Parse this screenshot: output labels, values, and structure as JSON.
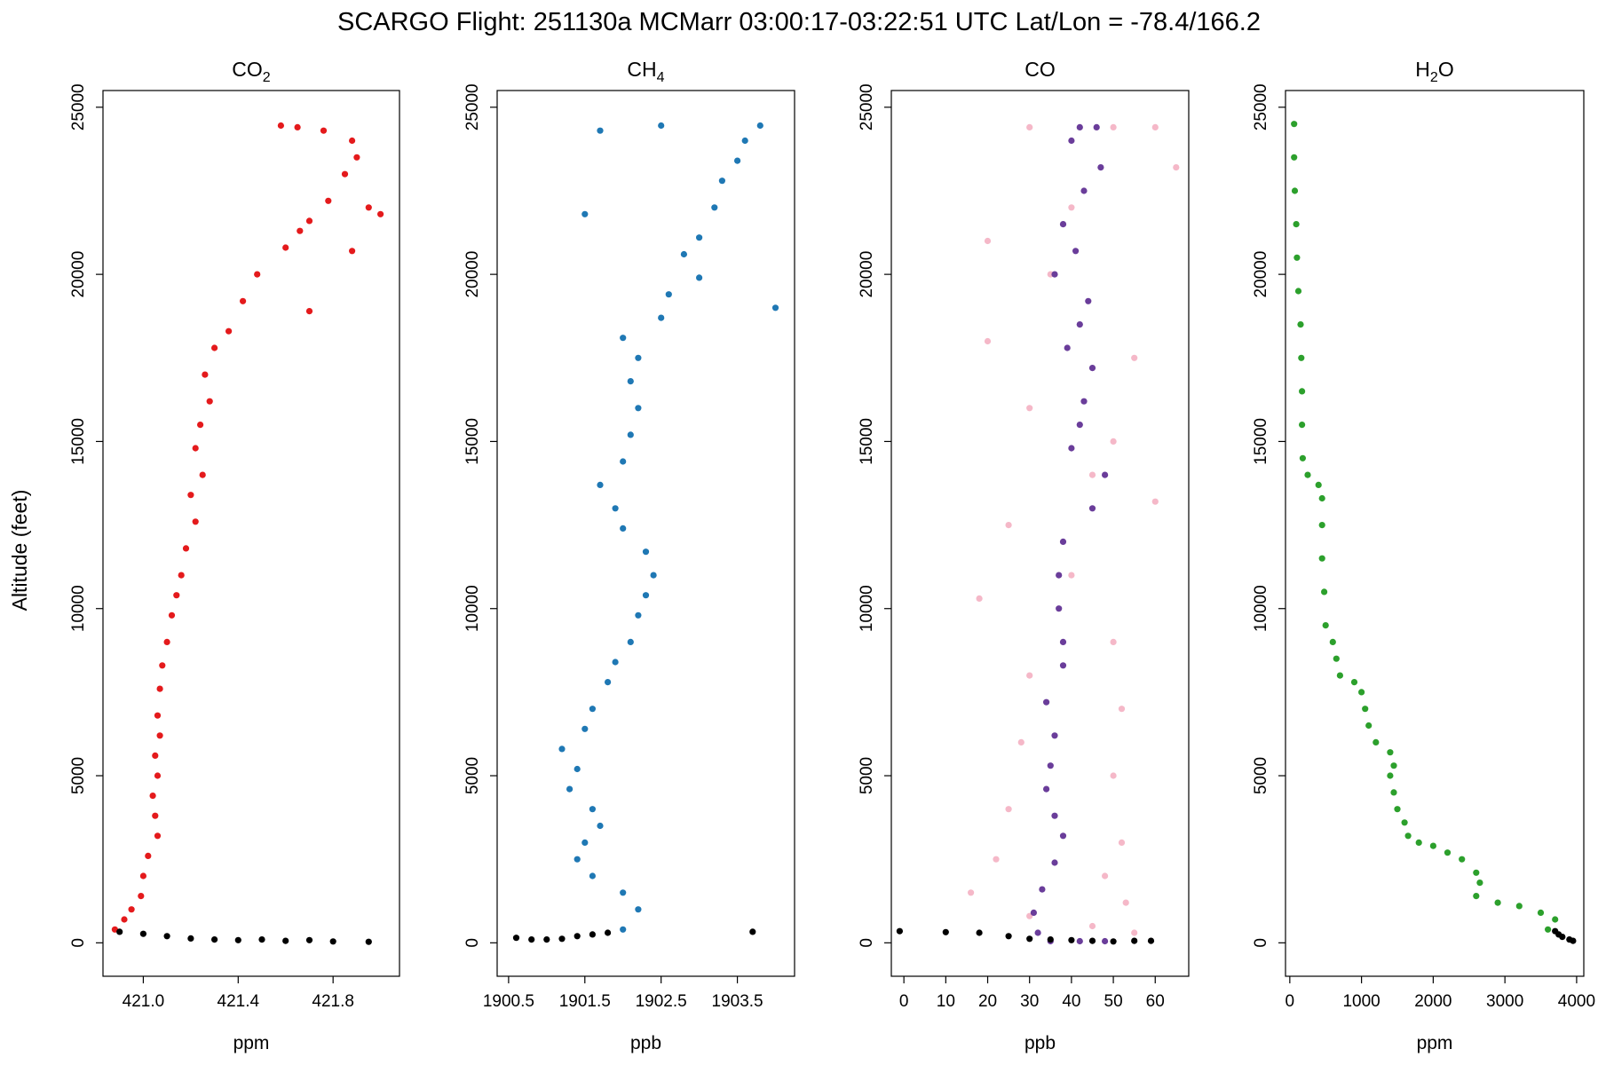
{
  "title": "SCARGO Flight: 251130a  MCMarr  03:00:17-03:22:51 UTC  Lat/Lon = -78.4/166.2",
  "ylabel": "Altitude (feet)",
  "chart_data": [
    {
      "type": "scatter",
      "title": "CO",
      "title_sub": "2",
      "xlabel": "ppm",
      "xlim": [
        420.83,
        422.08
      ],
      "ylim": [
        -1000,
        25500
      ],
      "xticks": [
        421.0,
        421.4,
        421.8
      ],
      "xtick_labels": [
        "421.0",
        "421.4",
        "421.8"
      ],
      "yticks": [
        0,
        5000,
        10000,
        15000,
        20000,
        25000
      ],
      "ytick_labels": [
        "0",
        "5000",
        "10000",
        "15000",
        "20000",
        "25000"
      ],
      "series": [
        {
          "color": "#e41a1c",
          "points": [
            [
              420.88,
              400
            ],
            [
              420.92,
              700
            ],
            [
              420.95,
              1000
            ],
            [
              420.99,
              1400
            ],
            [
              421.0,
              2000
            ],
            [
              421.02,
              2600
            ],
            [
              421.06,
              3200
            ],
            [
              421.05,
              3800
            ],
            [
              421.04,
              4400
            ],
            [
              421.06,
              5000
            ],
            [
              421.05,
              5600
            ],
            [
              421.07,
              6200
            ],
            [
              421.06,
              6800
            ],
            [
              421.07,
              7600
            ],
            [
              421.08,
              8300
            ],
            [
              421.1,
              9000
            ],
            [
              421.12,
              9800
            ],
            [
              421.14,
              10400
            ],
            [
              421.16,
              11000
            ],
            [
              421.18,
              11800
            ],
            [
              421.22,
              12600
            ],
            [
              421.2,
              13400
            ],
            [
              421.25,
              14000
            ],
            [
              421.22,
              14800
            ],
            [
              421.24,
              15500
            ],
            [
              421.28,
              16200
            ],
            [
              421.26,
              17000
            ],
            [
              421.3,
              17800
            ],
            [
              421.36,
              18300
            ],
            [
              421.42,
              19200
            ],
            [
              421.48,
              20000
            ],
            [
              421.6,
              20800
            ],
            [
              421.66,
              21300
            ],
            [
              421.7,
              21600
            ],
            [
              421.78,
              22200
            ],
            [
              421.85,
              23000
            ],
            [
              421.95,
              22000
            ],
            [
              422.0,
              21800
            ],
            [
              421.9,
              23500
            ],
            [
              421.88,
              24000
            ],
            [
              421.76,
              24300
            ],
            [
              421.65,
              24400
            ],
            [
              421.58,
              24450
            ],
            [
              421.7,
              18900
            ],
            [
              421.88,
              20700
            ]
          ]
        },
        {
          "color": "#000000",
          "points": [
            [
              420.9,
              330
            ],
            [
              421.0,
              270
            ],
            [
              421.1,
              200
            ],
            [
              421.2,
              130
            ],
            [
              421.3,
              100
            ],
            [
              421.4,
              80
            ],
            [
              421.5,
              100
            ],
            [
              421.6,
              60
            ],
            [
              421.7,
              80
            ],
            [
              421.8,
              40
            ],
            [
              421.95,
              30
            ]
          ]
        }
      ]
    },
    {
      "type": "scatter",
      "title": "CH",
      "title_sub": "4",
      "xlabel": "ppb",
      "xlim": [
        1900.35,
        1904.25
      ],
      "ylim": [
        -1000,
        25500
      ],
      "xticks": [
        1900.5,
        1901.5,
        1902.5,
        1903.5
      ],
      "xtick_labels": [
        "1900.5",
        "1901.5",
        "1902.5",
        "1903.5"
      ],
      "yticks": [
        0,
        5000,
        10000,
        15000,
        20000,
        25000
      ],
      "ytick_labels": [
        "0",
        "5000",
        "10000",
        "15000",
        "20000",
        "25000"
      ],
      "series": [
        {
          "color": "#1f78b4",
          "points": [
            [
              1902.0,
              400
            ],
            [
              1902.2,
              1000
            ],
            [
              1902.0,
              1500
            ],
            [
              1901.6,
              2000
            ],
            [
              1901.4,
              2500
            ],
            [
              1901.5,
              3000
            ],
            [
              1901.7,
              3500
            ],
            [
              1901.6,
              4000
            ],
            [
              1901.3,
              4600
            ],
            [
              1901.4,
              5200
            ],
            [
              1901.2,
              5800
            ],
            [
              1901.5,
              6400
            ],
            [
              1901.6,
              7000
            ],
            [
              1901.8,
              7800
            ],
            [
              1901.9,
              8400
            ],
            [
              1902.1,
              9000
            ],
            [
              1902.2,
              9800
            ],
            [
              1902.3,
              10400
            ],
            [
              1902.4,
              11000
            ],
            [
              1902.3,
              11700
            ],
            [
              1902.0,
              12400
            ],
            [
              1901.9,
              13000
            ],
            [
              1901.7,
              13700
            ],
            [
              1902.0,
              14400
            ],
            [
              1902.1,
              15200
            ],
            [
              1902.2,
              16000
            ],
            [
              1902.1,
              16800
            ],
            [
              1902.2,
              17500
            ],
            [
              1902.0,
              18100
            ],
            [
              1902.5,
              18700
            ],
            [
              1902.6,
              19400
            ],
            [
              1903.0,
              19900
            ],
            [
              1902.8,
              20600
            ],
            [
              1903.0,
              21100
            ],
            [
              1903.2,
              22000
            ],
            [
              1903.3,
              22800
            ],
            [
              1903.5,
              23400
            ],
            [
              1903.6,
              24000
            ],
            [
              1903.8,
              24450
            ],
            [
              1902.5,
              24450
            ],
            [
              1904.0,
              19000
            ],
            [
              1901.7,
              24300
            ],
            [
              1901.5,
              21800
            ]
          ]
        },
        {
          "color": "#000000",
          "points": [
            [
              1900.6,
              150
            ],
            [
              1900.8,
              100
            ],
            [
              1901.0,
              100
            ],
            [
              1901.2,
              120
            ],
            [
              1901.4,
              200
            ],
            [
              1901.6,
              250
            ],
            [
              1901.8,
              300
            ],
            [
              1903.7,
              330
            ]
          ]
        }
      ]
    },
    {
      "type": "scatter",
      "title": "CO",
      "title_sub": "",
      "xlabel": "ppb",
      "xlim": [
        -3,
        68
      ],
      "ylim": [
        -1000,
        25500
      ],
      "xticks": [
        0,
        10,
        20,
        30,
        40,
        50,
        60
      ],
      "xtick_labels": [
        "0",
        "10",
        "20",
        "30",
        "40",
        "50",
        "60"
      ],
      "yticks": [
        0,
        5000,
        10000,
        15000,
        20000,
        25000
      ],
      "ytick_labels": [
        "0",
        "5000",
        "10000",
        "15000",
        "20000",
        "25000"
      ],
      "series": [
        {
          "color": "#f5b8c8",
          "points": [
            [
              30,
              24400
            ],
            [
              50,
              24400
            ],
            [
              60,
              24400
            ],
            [
              65,
              23200
            ],
            [
              40,
              22000
            ],
            [
              20,
              21000
            ],
            [
              35,
              20000
            ],
            [
              20,
              18000
            ],
            [
              55,
              17500
            ],
            [
              30,
              16000
            ],
            [
              50,
              15000
            ],
            [
              45,
              14000
            ],
            [
              60,
              13200
            ],
            [
              25,
              12500
            ],
            [
              40,
              11000
            ],
            [
              18,
              10300
            ],
            [
              50,
              9000
            ],
            [
              30,
              8000
            ],
            [
              52,
              7000
            ],
            [
              28,
              6000
            ],
            [
              50,
              5000
            ],
            [
              25,
              4000
            ],
            [
              52,
              3000
            ],
            [
              22,
              2500
            ],
            [
              48,
              2000
            ],
            [
              16,
              1500
            ],
            [
              53,
              1200
            ],
            [
              30,
              800
            ],
            [
              45,
              500
            ],
            [
              55,
              300
            ]
          ]
        },
        {
          "color": "#6a3d9a",
          "points": [
            [
              42,
              24400
            ],
            [
              46,
              24400
            ],
            [
              40,
              24000
            ],
            [
              47,
              23200
            ],
            [
              43,
              22500
            ],
            [
              38,
              21500
            ],
            [
              41,
              20700
            ],
            [
              36,
              20000
            ],
            [
              44,
              19200
            ],
            [
              42,
              18500
            ],
            [
              39,
              17800
            ],
            [
              45,
              17200
            ],
            [
              43,
              16200
            ],
            [
              42,
              15500
            ],
            [
              40,
              14800
            ],
            [
              48,
              14000
            ],
            [
              45,
              13000
            ],
            [
              38,
              12000
            ],
            [
              37,
              11000
            ],
            [
              37,
              10000
            ],
            [
              38,
              9000
            ],
            [
              38,
              8300
            ],
            [
              34,
              7200
            ],
            [
              36,
              6200
            ],
            [
              35,
              5300
            ],
            [
              34,
              4600
            ],
            [
              36,
              3800
            ],
            [
              38,
              3200
            ],
            [
              36,
              2400
            ],
            [
              33,
              1600
            ],
            [
              31,
              900
            ],
            [
              32,
              300
            ],
            [
              35,
              50
            ],
            [
              42,
              50
            ],
            [
              48,
              50
            ]
          ]
        },
        {
          "color": "#000000",
          "points": [
            [
              -1,
              350
            ],
            [
              10,
              320
            ],
            [
              18,
              300
            ],
            [
              25,
              200
            ],
            [
              30,
              120
            ],
            [
              35,
              100
            ],
            [
              40,
              80
            ],
            [
              45,
              60
            ],
            [
              50,
              40
            ],
            [
              55,
              60
            ],
            [
              59,
              60
            ]
          ]
        }
      ]
    },
    {
      "type": "scatter",
      "title": "H",
      "title_sub": "2",
      "title_tail": "O",
      "xlabel": "ppm",
      "xlim": [
        -60,
        4100
      ],
      "ylim": [
        -1000,
        25500
      ],
      "xticks": [
        0,
        1000,
        2000,
        3000,
        4000
      ],
      "xtick_labels": [
        "0",
        "1000",
        "2000",
        "3000",
        "4000"
      ],
      "yticks": [
        0,
        5000,
        10000,
        15000,
        20000,
        25000
      ],
      "ytick_labels": [
        "0",
        "5000",
        "10000",
        "15000",
        "20000",
        "25000"
      ],
      "series": [
        {
          "color": "#2ca02c",
          "points": [
            [
              60,
              24500
            ],
            [
              60,
              23500
            ],
            [
              70,
              22500
            ],
            [
              90,
              21500
            ],
            [
              100,
              20500
            ],
            [
              120,
              19500
            ],
            [
              150,
              18500
            ],
            [
              160,
              17500
            ],
            [
              170,
              16500
            ],
            [
              170,
              15500
            ],
            [
              180,
              14500
            ],
            [
              250,
              14000
            ],
            [
              400,
              13700
            ],
            [
              450,
              13300
            ],
            [
              450,
              12500
            ],
            [
              450,
              11500
            ],
            [
              480,
              10500
            ],
            [
              500,
              9500
            ],
            [
              600,
              9000
            ],
            [
              650,
              8500
            ],
            [
              700,
              8000
            ],
            [
              900,
              7800
            ],
            [
              1000,
              7500
            ],
            [
              1050,
              7000
            ],
            [
              1100,
              6500
            ],
            [
              1200,
              6000
            ],
            [
              1400,
              5700
            ],
            [
              1450,
              5300
            ],
            [
              1400,
              5000
            ],
            [
              1450,
              4500
            ],
            [
              1500,
              4000
            ],
            [
              1600,
              3600
            ],
            [
              1650,
              3200
            ],
            [
              1800,
              3000
            ],
            [
              2000,
              2900
            ],
            [
              2200,
              2700
            ],
            [
              2400,
              2500
            ],
            [
              2600,
              2100
            ],
            [
              2650,
              1800
            ],
            [
              2600,
              1400
            ],
            [
              2900,
              1200
            ],
            [
              3200,
              1100
            ],
            [
              3500,
              900
            ],
            [
              3700,
              700
            ],
            [
              3600,
              400
            ]
          ]
        },
        {
          "color": "#000000",
          "points": [
            [
              3700,
              350
            ],
            [
              3750,
              250
            ],
            [
              3800,
              180
            ],
            [
              3900,
              100
            ],
            [
              3950,
              60
            ]
          ]
        }
      ]
    }
  ]
}
